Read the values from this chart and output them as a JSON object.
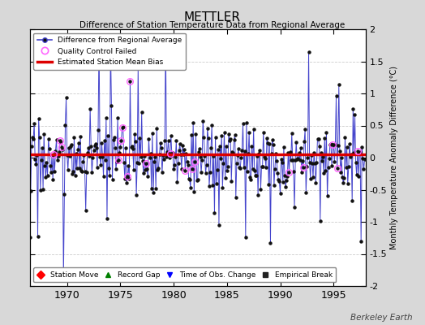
{
  "title": "METTLER",
  "subtitle": "Difference of Station Temperature Data from Regional Average",
  "ylabel": "Monthly Temperature Anomaly Difference (°C)",
  "xlabel_years": [
    1970,
    1975,
    1980,
    1985,
    1990,
    1995
  ],
  "ylim": [
    -2,
    2
  ],
  "bias_value": 0.05,
  "bias_color": "#dd0000",
  "line_color": "#4444cc",
  "marker_color": "#111111",
  "qc_color": "#ff66ff",
  "background_color": "#d8d8d8",
  "plot_bg_color": "#ffffff",
  "grid_color": "#cccccc",
  "watermark": "Berkeley Earth",
  "start_year": 1966.5,
  "end_year": 1998.0,
  "seed": 17,
  "yticks": [
    -2,
    -1.5,
    -1,
    -0.5,
    0,
    0.5,
    1,
    1.5,
    2
  ],
  "ytick_labels": [
    "-2",
    "-1.5",
    "-1",
    "-0.5",
    "0",
    "0.5",
    "1",
    "1.5",
    "2"
  ]
}
